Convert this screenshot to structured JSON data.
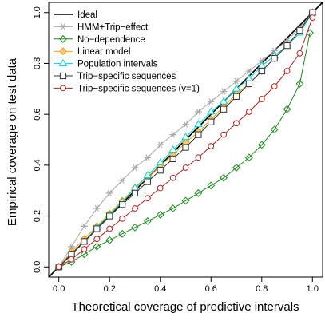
{
  "chart_data": {
    "type": "line",
    "title": "",
    "xlabel": "Theoretical coverage of predictive intervals",
    "ylabel": "Empirical coverage on test data",
    "xlim": [
      -0.04,
      1.04
    ],
    "ylim": [
      -0.04,
      1.04
    ],
    "xticks": [
      0.0,
      0.2,
      0.4,
      0.6,
      0.8,
      1.0
    ],
    "yticks": [
      0.0,
      0.2,
      0.4,
      0.6,
      0.8,
      1.0
    ],
    "xtick_labels": [
      "0.0",
      "0.2",
      "0.4",
      "0.6",
      "0.8",
      "1.0"
    ],
    "ytick_labels": [
      "0.0",
      "0.2",
      "0.4",
      "0.6",
      "0.8",
      "1.0"
    ],
    "grid": false,
    "legend_position": "top-left",
    "x": [
      0,
      0.05,
      0.1,
      0.15,
      0.2,
      0.25,
      0.3,
      0.35,
      0.4,
      0.45,
      0.5,
      0.55,
      0.6,
      0.65,
      0.7,
      0.75,
      0.8,
      0.85,
      0.9,
      0.95,
      1.0
    ],
    "series": [
      {
        "name": "Ideal",
        "color": "#000000",
        "marker": "none",
        "x": [
          -0.04,
          1.04
        ],
        "values": [
          -0.04,
          1.04
        ]
      },
      {
        "name": "HMM+Trip−effect",
        "color": "#a6a6a6",
        "marker": "asterisk",
        "values": [
          0.0,
          0.08,
          0.16,
          0.23,
          0.29,
          0.34,
          0.39,
          0.43,
          0.48,
          0.52,
          0.56,
          0.61,
          0.65,
          0.69,
          0.73,
          0.77,
          0.81,
          0.85,
          0.89,
          0.94,
          1.0
        ]
      },
      {
        "name": "No−dependence",
        "color": "#1a8a1a",
        "marker": "diamond",
        "x": [
          0,
          0.05,
          0.1,
          0.15,
          0.2,
          0.25,
          0.3,
          0.35,
          0.4,
          0.45,
          0.5,
          0.55,
          0.6,
          0.65,
          0.7,
          0.75,
          0.8,
          0.85,
          0.9,
          0.95,
          0.99
        ],
        "values": [
          0.0,
          0.02,
          0.05,
          0.08,
          0.105,
          0.13,
          0.155,
          0.18,
          0.205,
          0.23,
          0.26,
          0.29,
          0.32,
          0.35,
          0.39,
          0.43,
          0.48,
          0.54,
          0.62,
          0.72,
          0.92
        ]
      },
      {
        "name": "Linear model",
        "color": "#ff9900",
        "marker": "diamond",
        "values": [
          0.0,
          0.06,
          0.11,
          0.16,
          0.21,
          0.26,
          0.31,
          0.35,
          0.4,
          0.44,
          0.49,
          0.53,
          0.58,
          0.63,
          0.68,
          0.72,
          0.77,
          0.82,
          0.87,
          0.93,
          1.0
        ]
      },
      {
        "name": "Population intervals",
        "color": "#00d2d2",
        "marker": "triangle",
        "values": [
          0.0,
          0.05,
          0.1,
          0.155,
          0.205,
          0.255,
          0.31,
          0.36,
          0.41,
          0.46,
          0.51,
          0.56,
          0.61,
          0.65,
          0.7,
          0.74,
          0.79,
          0.83,
          0.87,
          0.92,
          1.0
        ]
      },
      {
        "name": "Trip−specific sequences",
        "color": "#333333",
        "marker": "square",
        "values": [
          0.0,
          0.05,
          0.1,
          0.15,
          0.2,
          0.245,
          0.29,
          0.335,
          0.38,
          0.425,
          0.47,
          0.52,
          0.57,
          0.62,
          0.67,
          0.72,
          0.77,
          0.82,
          0.87,
          0.93,
          1.0
        ]
      },
      {
        "name": "Trip−specific sequences (v=1)",
        "color": "#b22222",
        "marker": "circle",
        "values": [
          0.0,
          0.03,
          0.07,
          0.11,
          0.15,
          0.19,
          0.23,
          0.27,
          0.31,
          0.35,
          0.39,
          0.43,
          0.475,
          0.52,
          0.565,
          0.61,
          0.66,
          0.71,
          0.77,
          0.84,
          0.98
        ]
      }
    ]
  }
}
